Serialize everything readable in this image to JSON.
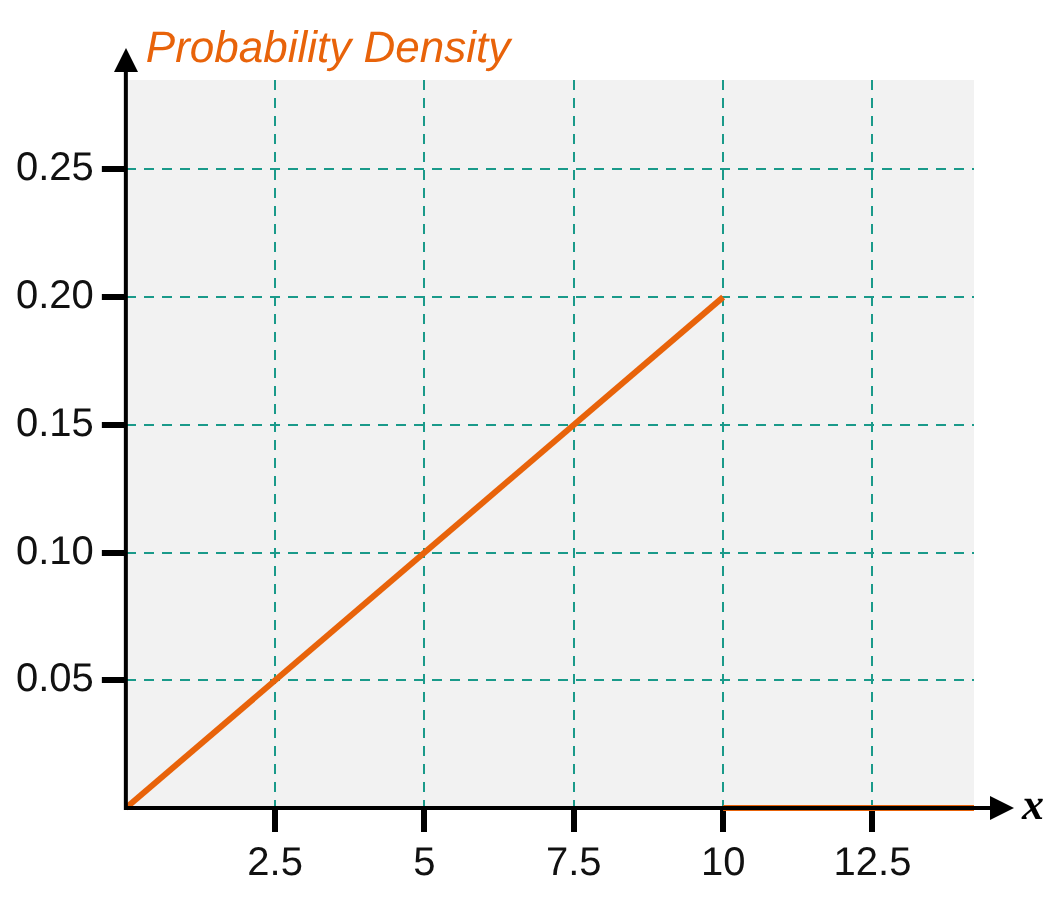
{
  "chart_data": {
    "type": "line",
    "ylabel": "Probability Density",
    "xlabel": "x",
    "series": [
      {
        "color": "#e8630a",
        "x": [
          0,
          10
        ],
        "values": [
          0,
          0.2
        ]
      },
      {
        "color": "#e8630a",
        "x": [
          10,
          14.2
        ],
        "values": [
          0,
          0
        ]
      }
    ],
    "xlim": [
      0,
      14.2
    ],
    "ylim": [
      0,
      0.285
    ],
    "xticks": [
      2.5,
      5,
      7.5,
      10,
      12.5
    ],
    "yticks": [
      0.05,
      {
        "value": 0.1,
        "label": "0.10"
      },
      0.15,
      {
        "value": 0.2,
        "label": "0.20"
      },
      0.25
    ],
    "grid": true,
    "legend": false,
    "marker": "none",
    "line_style": "solid"
  }
}
